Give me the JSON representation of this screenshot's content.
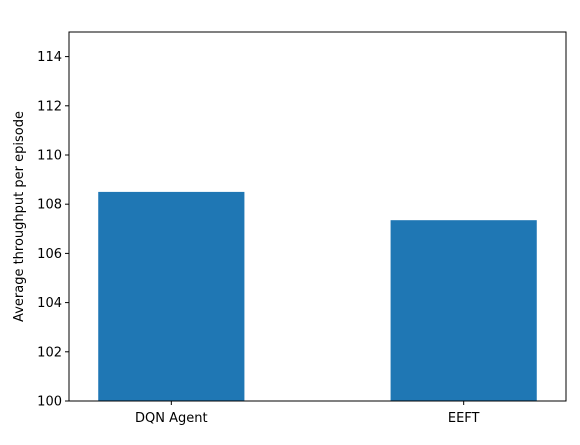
{
  "chart_data": {
    "type": "bar",
    "categories": [
      "DQN Agent",
      "EEFT"
    ],
    "values": [
      108.5,
      107.35
    ],
    "title": "",
    "xlabel": "",
    "ylabel": "Average throughput per episode",
    "ylim": [
      100,
      115
    ],
    "yticks": [
      100,
      102,
      104,
      106,
      108,
      110,
      112,
      114
    ],
    "grid": false,
    "legend": "none",
    "bar_color": "#1f77b4"
  }
}
